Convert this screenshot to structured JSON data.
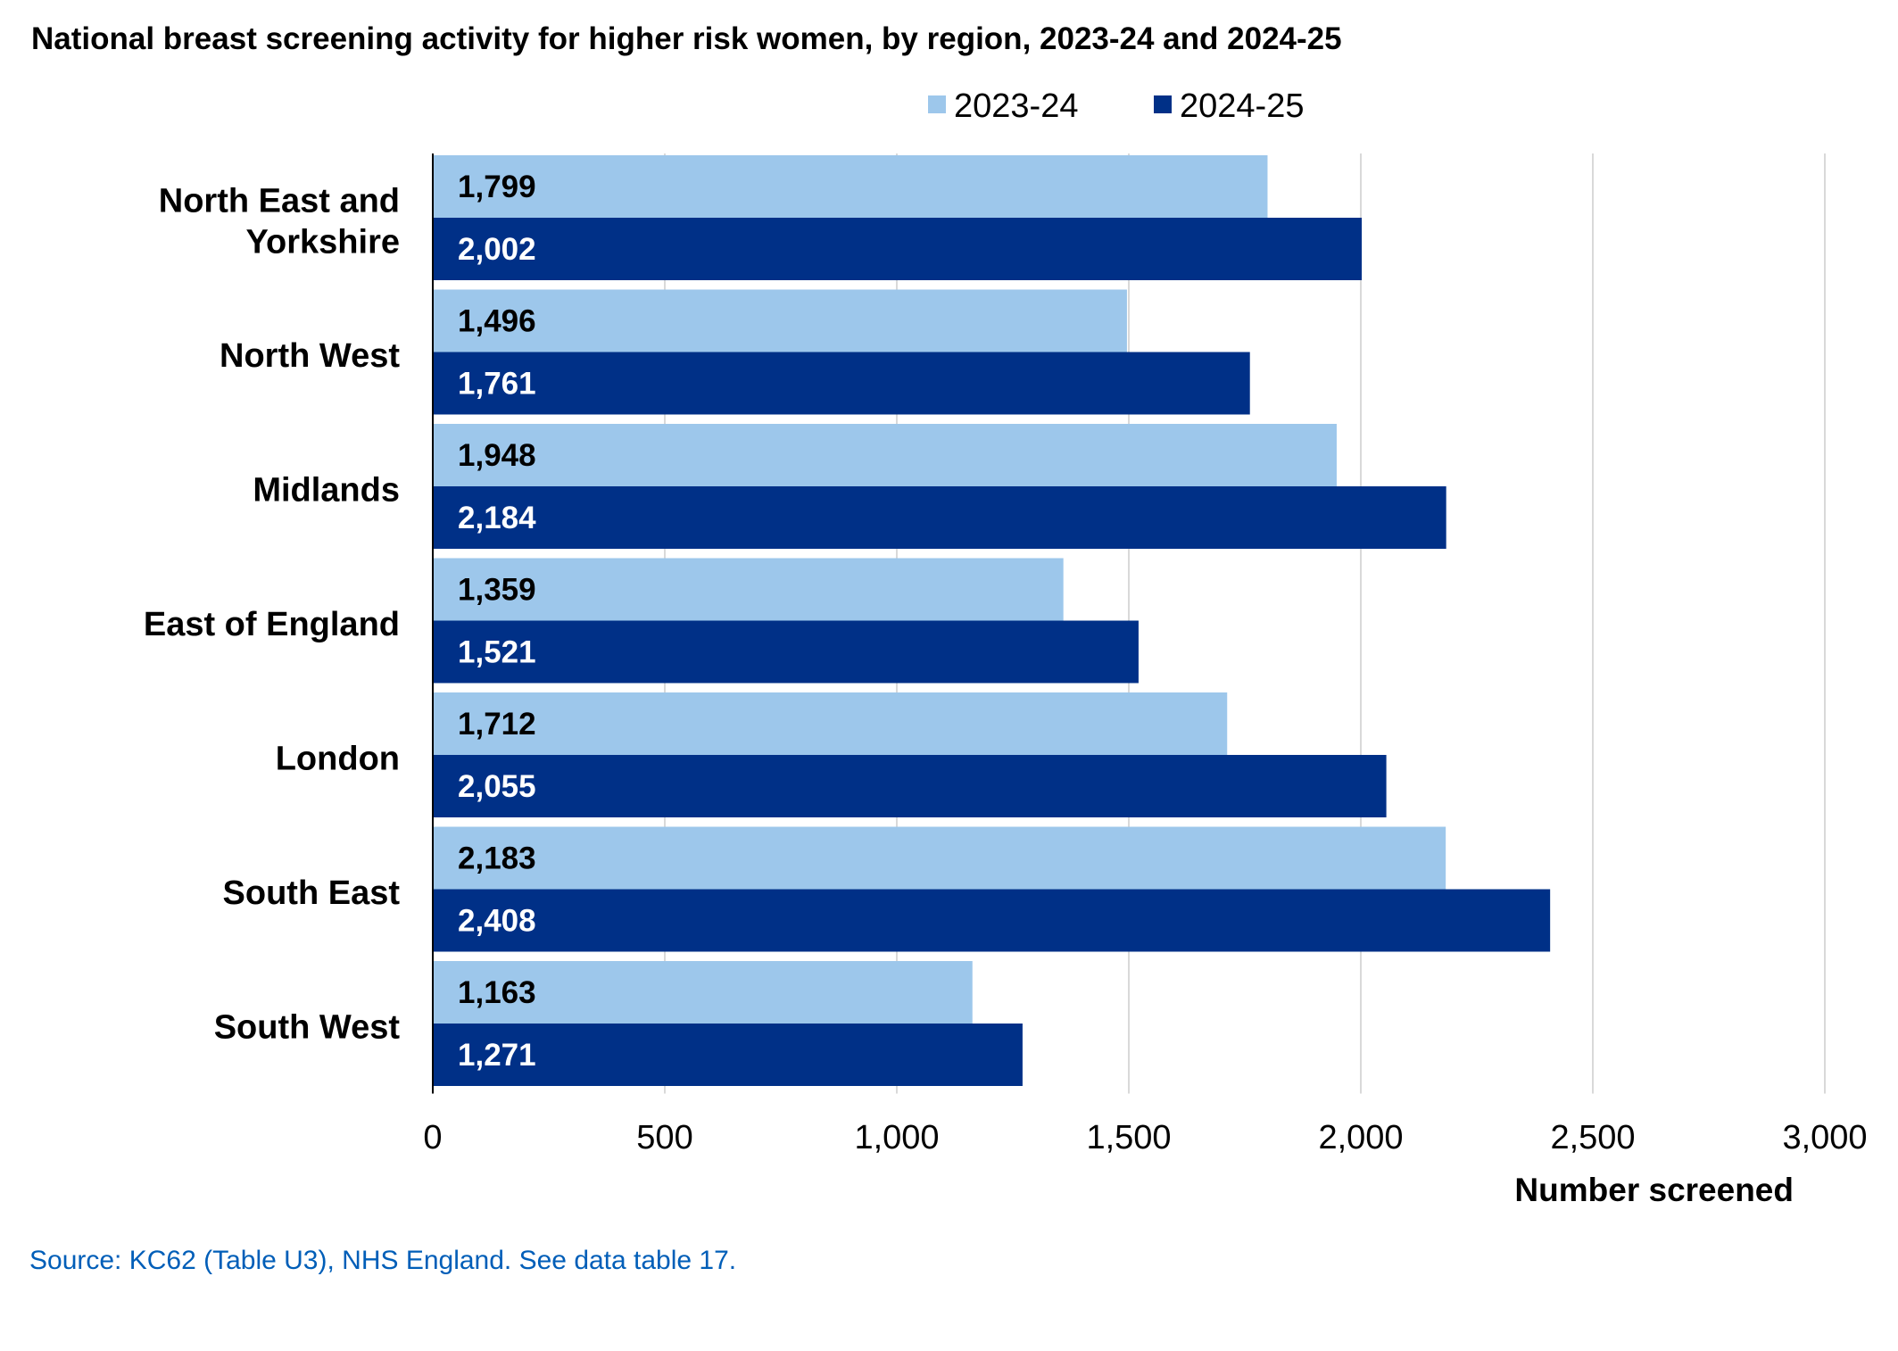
{
  "chart_data": {
    "type": "bar",
    "orientation": "horizontal",
    "title": "National breast screening activity for higher risk women, by region, 2023-24 and 2024-25",
    "categories": [
      "North East and Yorkshire",
      "North West",
      "Midlands",
      "East of England",
      "London",
      "South East",
      "South West"
    ],
    "category_lines": [
      [
        "North East and",
        "Yorkshire"
      ],
      [
        "North West"
      ],
      [
        "Midlands"
      ],
      [
        "East of England"
      ],
      [
        "London"
      ],
      [
        "South East"
      ],
      [
        "South West"
      ]
    ],
    "series": [
      {
        "name": "2023-24",
        "color": "#9DC7EB",
        "label_color": "#000000",
        "values": [
          1799,
          1496,
          1948,
          1359,
          1712,
          2183,
          1163
        ],
        "value_labels": [
          "1,799",
          "1,496",
          "1,948",
          "1,359",
          "1,712",
          "2,183",
          "1,163"
        ]
      },
      {
        "name": "2024-25",
        "color": "#003087",
        "label_color": "#ffffff",
        "values": [
          2002,
          1761,
          2184,
          1521,
          2055,
          2408,
          1271
        ],
        "value_labels": [
          "2,002",
          "1,761",
          "2,184",
          "1,521",
          "2,055",
          "2,408",
          "1,271"
        ]
      }
    ],
    "xlabel": "Number screened",
    "ylabel": "",
    "xlim": [
      0,
      3000
    ],
    "x_ticks": [
      0,
      500,
      1000,
      1500,
      2000,
      2500,
      3000
    ],
    "x_tick_labels": [
      "0",
      "500",
      "1,000",
      "1,500",
      "2,000",
      "2,500",
      "3,000"
    ],
    "grid": "vertical",
    "legend": "top-right",
    "data_labels": "inside-base"
  },
  "source": {
    "text": "Source: KC62 (Table U3), NHS England. See data table 17.",
    "color": "#005EB8"
  },
  "colors": {
    "gridline": "#D9D9D9",
    "axis": "#000000"
  }
}
